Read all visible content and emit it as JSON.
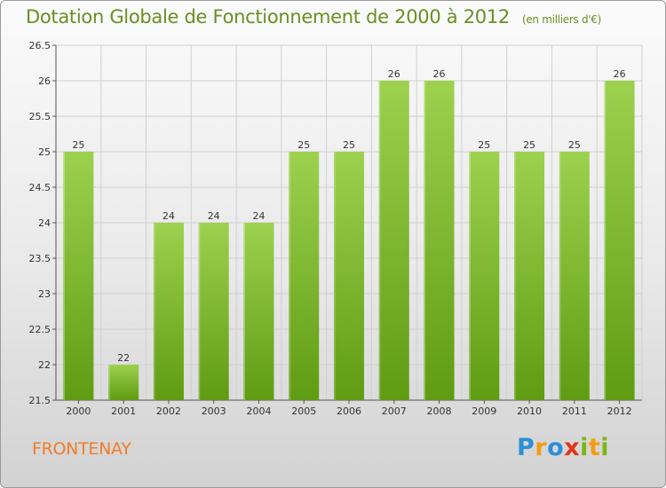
{
  "header": {
    "title": "Dotation Globale de Fonctionnement de 2000 à 2012",
    "subtitle": "(en milliers d'€)"
  },
  "footer": {
    "place_name": "FRONTENAY",
    "logo_text": "Proxiti"
  },
  "colors": {
    "bar_top": "#9dd14f",
    "bar_bottom": "#5f9c12",
    "title": "#6b8e23",
    "place_name": "#f07d2a"
  },
  "chart_data": {
    "type": "bar",
    "categories": [
      "2000",
      "2001",
      "2002",
      "2003",
      "2004",
      "2005",
      "2006",
      "2007",
      "2008",
      "2009",
      "2010",
      "2011",
      "2012"
    ],
    "values": [
      25,
      22,
      24,
      24,
      24,
      25,
      25,
      26,
      26,
      25,
      25,
      25,
      26
    ],
    "title": "Dotation Globale de Fonctionnement de 2000 à 2012",
    "subtitle": "(en milliers d'€)",
    "xlabel": "",
    "ylabel": "",
    "ylim": [
      21.5,
      26.5
    ],
    "yticks": [
      "21.5",
      "22",
      "22.5",
      "23",
      "23.5",
      "24",
      "24.5",
      "25",
      "25.5",
      "26",
      "26.5"
    ],
    "grid": true,
    "legend": "none"
  }
}
